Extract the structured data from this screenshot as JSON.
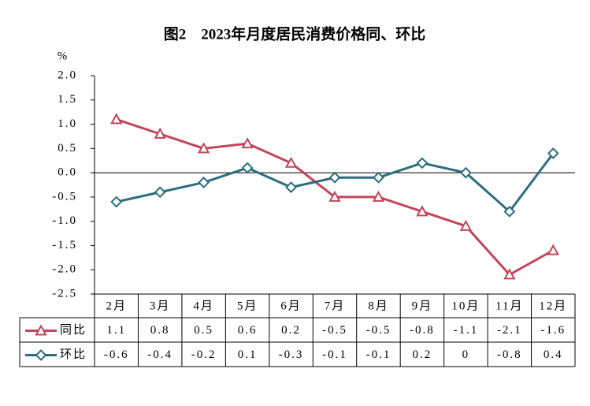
{
  "chart_data": {
    "type": "line",
    "title": "图2　2023年月度居民消费价格同、环比",
    "y_unit": "%",
    "categories": [
      "2月",
      "3月",
      "4月",
      "5月",
      "6月",
      "7月",
      "8月",
      "9月",
      "10月",
      "11月",
      "12月"
    ],
    "series": [
      {
        "name": "同比",
        "color": "#c0475a",
        "marker": "triangle",
        "values": [
          1.1,
          0.8,
          0.5,
          0.6,
          0.2,
          -0.5,
          -0.5,
          -0.8,
          -1.1,
          -2.1,
          -1.6
        ]
      },
      {
        "name": "环比",
        "color": "#2b6e7d",
        "marker": "diamond",
        "values": [
          -0.6,
          -0.4,
          -0.2,
          0.1,
          -0.3,
          -0.1,
          -0.1,
          0.2,
          0,
          -0.8,
          0.4
        ]
      }
    ],
    "ylim": [
      -2.5,
      2
    ],
    "yticks": [
      {
        "value": -2.5,
        "label": "-2.5"
      },
      {
        "value": -2,
        "label": "-2.0"
      },
      {
        "value": -1.5,
        "label": "-1.5"
      },
      {
        "value": -1,
        "label": "-1.0"
      },
      {
        "value": -0.5,
        "label": "-0.5"
      },
      {
        "value": 0,
        "label": "0.0"
      },
      {
        "value": 0.5,
        "label": "0.5"
      },
      {
        "value": 1,
        "label": "1.0"
      },
      {
        "value": 1.5,
        "label": "1.5"
      },
      {
        "value": 2,
        "label": "2.0"
      }
    ],
    "data_table": true
  }
}
